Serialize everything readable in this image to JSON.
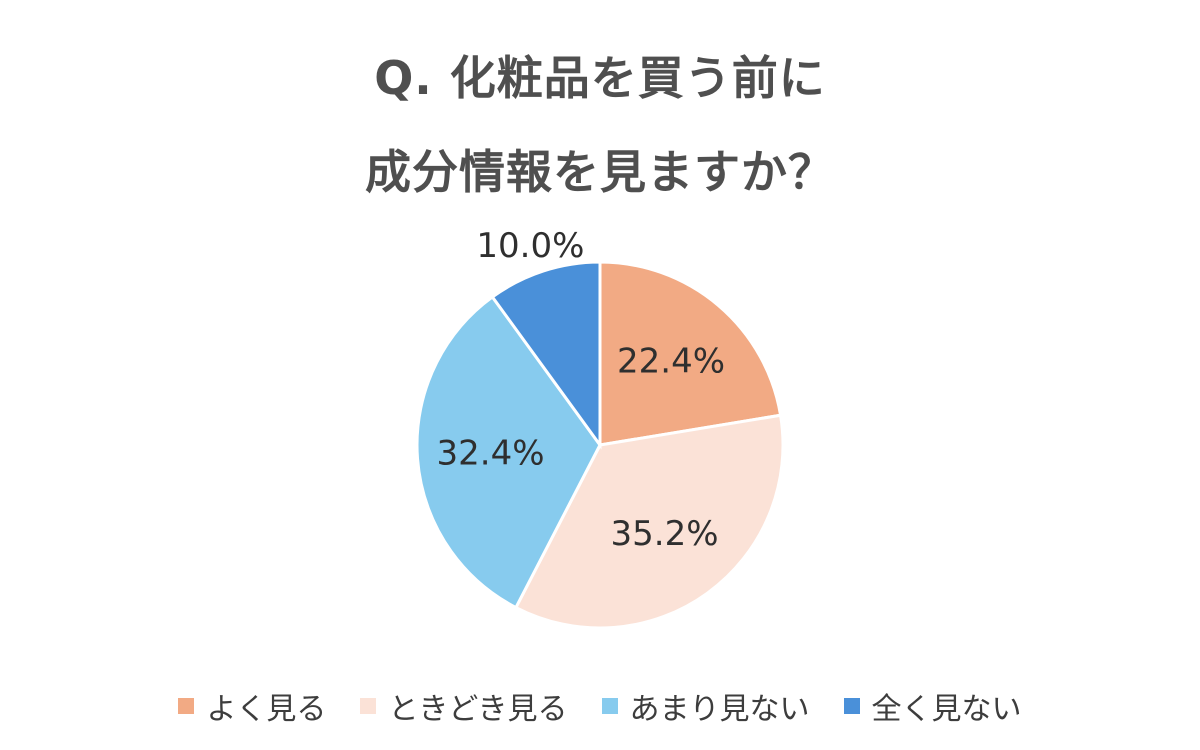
{
  "title": {
    "line1": "Q. 化粧品を買う前に",
    "line2": "成分情報を見ますか？"
  },
  "chart_data": {
    "type": "pie",
    "start_angle_deg": 0,
    "direction": "clockwise",
    "slices": [
      {
        "label": "よく見る",
        "value": 22.4,
        "display": "22.4%",
        "color": "#f2aa84"
      },
      {
        "label": "ときどき見る",
        "value": 35.2,
        "display": "35.2%",
        "color": "#fbe2d7"
      },
      {
        "label": "あまり見ない",
        "value": 32.4,
        "display": "32.4%",
        "color": "#87cbee"
      },
      {
        "label": "全く見ない",
        "value": 10.0,
        "display": "10.0%",
        "color": "#4a90d9"
      }
    ],
    "legend_position": "bottom"
  }
}
